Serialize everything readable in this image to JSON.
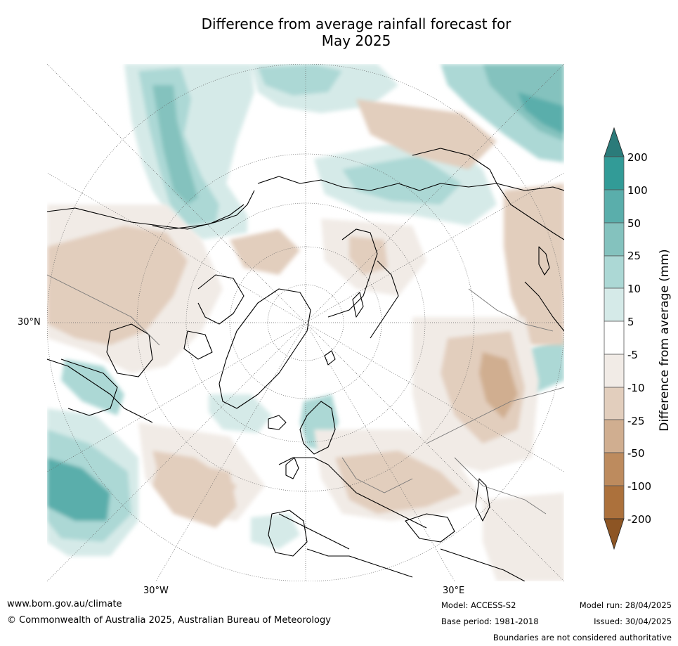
{
  "title": {
    "line1": "Difference from average rainfall forecast for",
    "line2": "May 2025"
  },
  "map": {
    "projection": "north-polar-stereographic",
    "labels": {
      "lat_30n": "30°N",
      "lon_30w": "30°W",
      "lon_30e": "30°E"
    }
  },
  "colorbar": {
    "title": "Difference from average (mm)",
    "ticks": [
      "200",
      "100",
      "50",
      "25",
      "10",
      "5",
      "-5",
      "-10",
      "-25",
      "-50",
      "-100",
      "-200"
    ],
    "colors": {
      "gt200": "#2b7b7a",
      "100_200": "#329b97",
      "50_100": "#5aaeab",
      "25_50": "#84c2be",
      "10_25": "#acd8d5",
      "5_10": "#d5eae8",
      "neutral": "#ffffff",
      "m5_m10": "#f1ebe6",
      "m10_m25": "#e2cebd",
      "m25_m50": "#d0ae90",
      "m50_m100": "#bd8b5e",
      "m100_m200": "#ac713c",
      "lt200": "#8d5524"
    }
  },
  "footer": {
    "url": "www.bom.gov.au/climate",
    "copyright": "© Commonwealth of Australia 2025, Australian Bureau of Meteorology",
    "model": "Model: ACCESS-S2",
    "base_period": "Base period: 1981-2018",
    "model_run": "Model run: 28/04/2025",
    "issued": "Issued: 30/04/2025",
    "disclaimer": "Boundaries are not considered authoritative"
  }
}
